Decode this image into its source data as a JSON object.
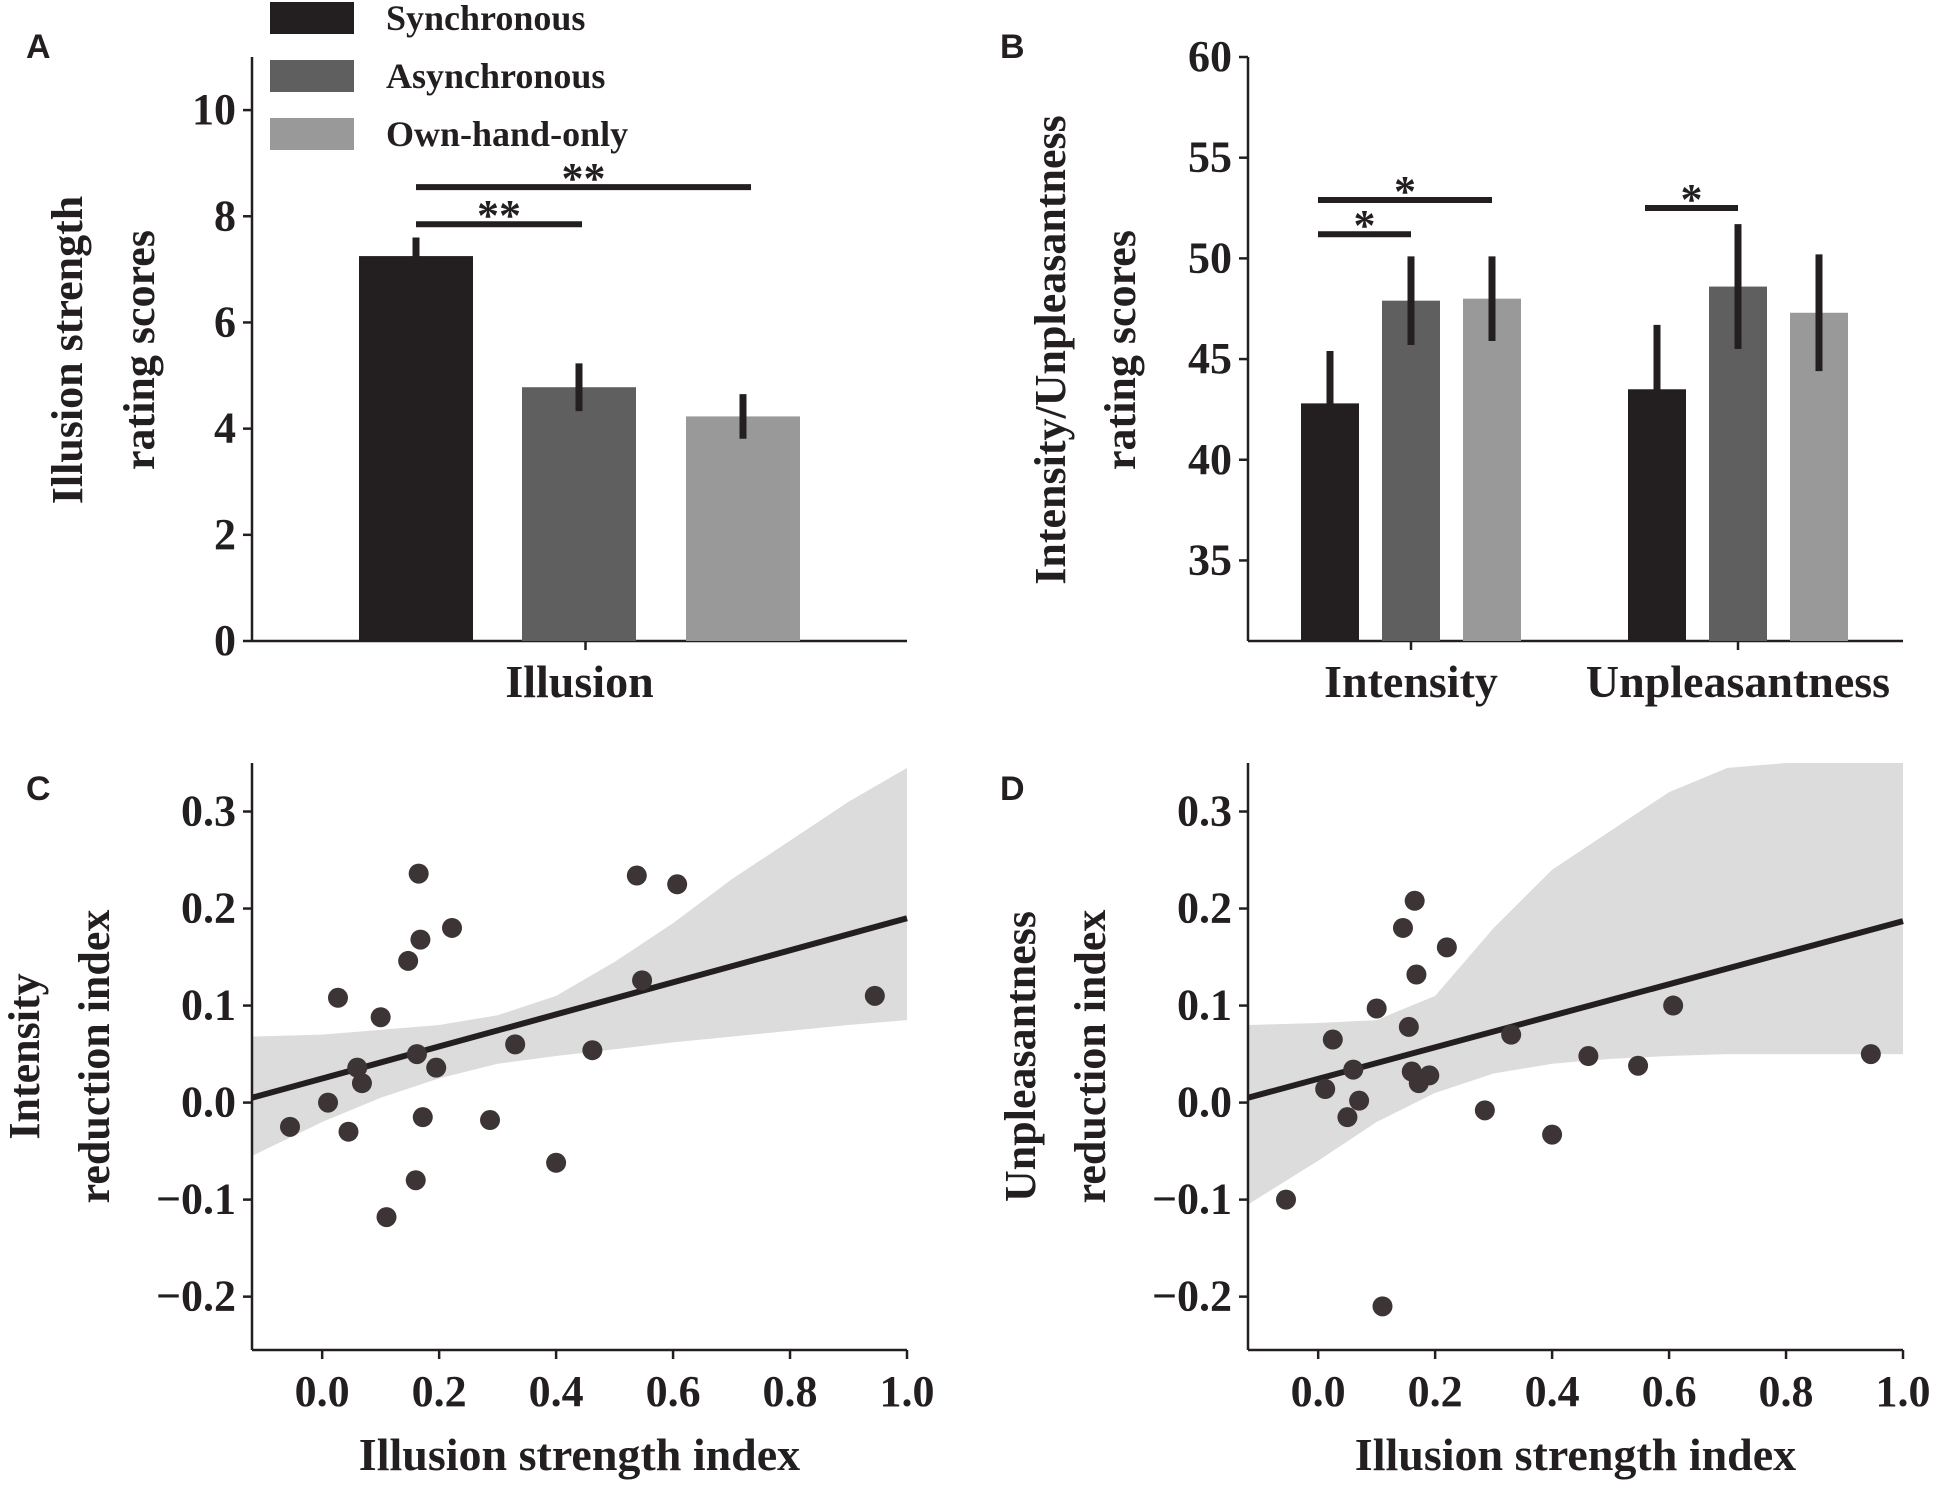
{
  "colors": {
    "synchronous": "#231f20",
    "asynchronous": "#5f5f5f",
    "own_hand_only": "#999999",
    "error_bar": "#231f20",
    "axis": "#231f20",
    "point": "#3d3535",
    "band": "#dcdcdc",
    "line": "#231f20"
  },
  "chart_data": [
    {
      "panel": "A",
      "type": "bar",
      "ylabel": [
        "Illusion strength",
        "rating scores"
      ],
      "categories": [
        "Illusion"
      ],
      "ylim": [
        0,
        11
      ],
      "yticks": [
        "0",
        "2",
        "4",
        "6",
        "8",
        "10"
      ],
      "legend": [
        "Synchronous",
        "Asynchronous",
        "Own-hand-only"
      ],
      "series": [
        {
          "name": "Synchronous",
          "values": [
            7.25
          ],
          "err": [
            0.35
          ]
        },
        {
          "name": "Asynchronous",
          "values": [
            4.78
          ],
          "err": [
            0.45
          ]
        },
        {
          "name": "Own-hand-only",
          "values": [
            4.23
          ],
          "err": [
            0.42
          ]
        }
      ],
      "significance": [
        {
          "from": 0,
          "to": 1,
          "level": 7.85,
          "label": "**"
        },
        {
          "from": 0,
          "to": 2,
          "level": 8.55,
          "label": "**"
        }
      ]
    },
    {
      "panel": "B",
      "type": "bar",
      "ylabel": [
        "Intensity/Unpleasantness",
        "rating scores"
      ],
      "categories": [
        "Intensity",
        "Unpleasantness"
      ],
      "ylim": [
        31,
        60
      ],
      "yticks": [
        "35",
        "40",
        "45",
        "50",
        "55",
        "60"
      ],
      "series": [
        {
          "name": "Synchronous",
          "values": [
            42.8,
            43.5
          ],
          "err": [
            2.6,
            3.2
          ]
        },
        {
          "name": "Asynchronous",
          "values": [
            47.9,
            48.6
          ],
          "err": [
            2.2,
            3.1
          ]
        },
        {
          "name": "Own-hand-only",
          "values": [
            48.0,
            47.3
          ],
          "err": [
            2.1,
            2.9
          ]
        }
      ],
      "significance": [
        {
          "category": 0,
          "from": 0,
          "to": 1,
          "level": 51.2,
          "label": "*"
        },
        {
          "category": 0,
          "from": 0,
          "to": 2,
          "level": 52.9,
          "label": "*"
        },
        {
          "category": 1,
          "from": 0,
          "to": 1,
          "level": 52.5,
          "label": "*"
        }
      ]
    },
    {
      "panel": "C",
      "type": "scatter",
      "xlabel": "Illusion strength index",
      "ylabel": [
        "Intensity",
        "reduction index"
      ],
      "xlim": [
        -0.12,
        1.0
      ],
      "ylim": [
        -0.255,
        0.35
      ],
      "xticks": [
        "0.0",
        "0.2",
        "0.4",
        "0.6",
        "0.8",
        "1.0"
      ],
      "yticks": [
        "−0.2",
        "−0.1",
        "0.0",
        "0.1",
        "0.2",
        "0.3"
      ],
      "x": [
        -0.055,
        0.01,
        0.027,
        0.045,
        0.06,
        0.068,
        0.1,
        0.11,
        0.147,
        0.16,
        0.162,
        0.165,
        0.168,
        0.172,
        0.195,
        0.222,
        0.287,
        0.33,
        0.4,
        0.462,
        0.538,
        0.547,
        0.607,
        0.945
      ],
      "y": [
        -0.025,
        0.0,
        0.108,
        -0.03,
        0.036,
        0.02,
        0.088,
        -0.118,
        0.146,
        -0.08,
        0.05,
        0.236,
        0.168,
        -0.015,
        0.036,
        0.18,
        -0.018,
        0.06,
        -0.062,
        0.054,
        0.234,
        0.126,
        0.225,
        0.11
      ],
      "fit": {
        "x": [
          -0.12,
          1.0
        ],
        "y": [
          0.005,
          0.19
        ]
      },
      "band": {
        "x": [
          -0.12,
          0.0,
          0.1,
          0.2,
          0.3,
          0.4,
          0.5,
          0.6,
          0.7,
          0.8,
          0.9,
          1.0
        ],
        "lower": [
          -0.055,
          -0.02,
          0.005,
          0.025,
          0.04,
          0.048,
          0.055,
          0.062,
          0.068,
          0.074,
          0.08,
          0.085
        ],
        "upper": [
          0.068,
          0.07,
          0.075,
          0.08,
          0.09,
          0.11,
          0.145,
          0.185,
          0.23,
          0.27,
          0.31,
          0.345
        ]
      }
    },
    {
      "panel": "D",
      "type": "scatter",
      "xlabel": "Illusion strength index",
      "ylabel": [
        "Unpleasantness",
        "reduction index"
      ],
      "xlim": [
        -0.12,
        1.0
      ],
      "ylim": [
        -0.255,
        0.35
      ],
      "xticks": [
        "0.0",
        "0.2",
        "0.4",
        "0.6",
        "0.8",
        "1.0"
      ],
      "yticks": [
        "−0.2",
        "−0.1",
        "0.0",
        "0.1",
        "0.2",
        "0.3"
      ],
      "x": [
        -0.055,
        0.012,
        0.025,
        0.05,
        0.06,
        0.07,
        0.1,
        0.11,
        0.145,
        0.155,
        0.16,
        0.165,
        0.168,
        0.172,
        0.19,
        0.22,
        0.285,
        0.33,
        0.4,
        0.462,
        0.547,
        0.607,
        0.945
      ],
      "y": [
        -0.1,
        0.014,
        0.065,
        -0.015,
        0.034,
        0.002,
        0.097,
        -0.21,
        0.18,
        0.078,
        0.032,
        0.208,
        0.132,
        0.02,
        0.028,
        0.16,
        -0.008,
        0.07,
        -0.033,
        0.048,
        0.038,
        0.1,
        0.05
      ],
      "fit": {
        "x": [
          -0.12,
          1.0
        ],
        "y": [
          0.005,
          0.187
        ]
      },
      "band": {
        "x": [
          -0.12,
          0.0,
          0.1,
          0.2,
          0.3,
          0.4,
          0.5,
          0.6,
          0.7,
          0.8,
          0.9,
          1.0
        ],
        "lower": [
          -0.105,
          -0.06,
          -0.02,
          0.01,
          0.03,
          0.04,
          0.045,
          0.048,
          0.05,
          0.05,
          0.05,
          0.05
        ],
        "upper": [
          0.08,
          0.082,
          0.085,
          0.11,
          0.18,
          0.24,
          0.28,
          0.32,
          0.345,
          0.35,
          0.35,
          0.35
        ]
      }
    }
  ]
}
